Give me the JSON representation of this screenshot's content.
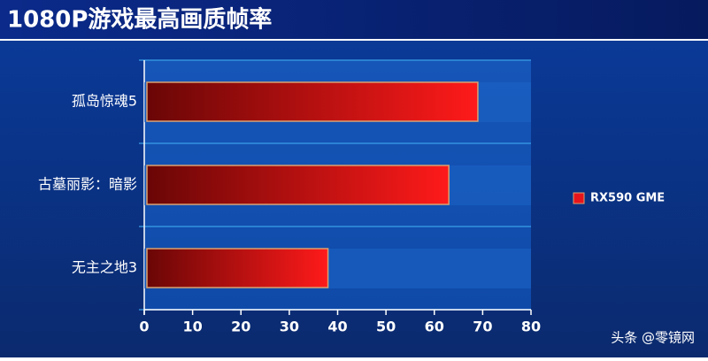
{
  "chart_data": {
    "type": "hbar",
    "title": "1080P游戏最高画质帧率",
    "categories": [
      "孤岛惊魂5",
      "古墓丽影：暗影",
      "无主之地3"
    ],
    "series": [
      {
        "name": "RX590 GME",
        "color": "#e8141c",
        "values": [
          69,
          63,
          38
        ]
      }
    ],
    "xlim": [
      0,
      80
    ],
    "xticks": [
      0,
      10,
      20,
      30,
      40,
      50,
      60,
      70,
      80
    ],
    "legend": "right"
  },
  "watermark": "头条 @零镜网"
}
